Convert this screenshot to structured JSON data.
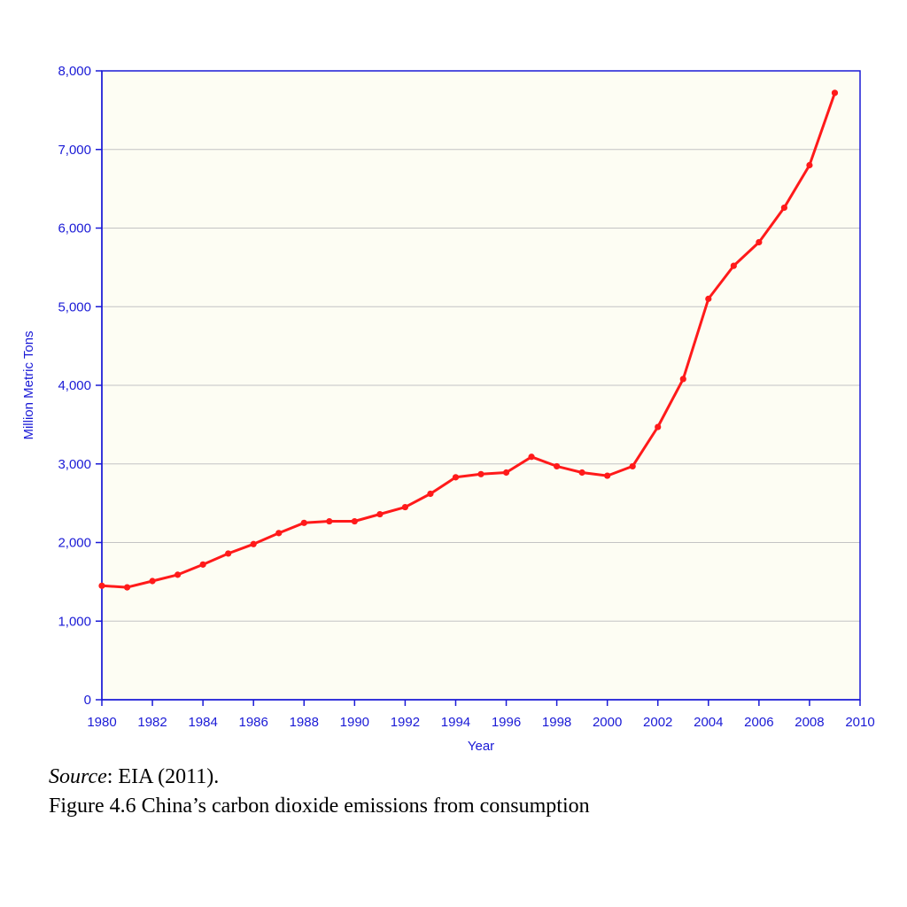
{
  "chart_data": {
    "type": "line",
    "xlabel": "Year",
    "ylabel": "Million Metric Tons",
    "xlim": [
      1980,
      2010
    ],
    "ylim": [
      0,
      8000
    ],
    "x_ticks": [
      "1980",
      "1982",
      "1984",
      "1986",
      "1988",
      "1990",
      "1992",
      "1994",
      "1996",
      "1998",
      "2000",
      "2002",
      "2004",
      "2006",
      "2008",
      "2010"
    ],
    "y_ticks": [
      "0",
      "1,000",
      "2,000",
      "3,000",
      "4,000",
      "5,000",
      "6,000",
      "7,000",
      "8,000"
    ],
    "grid": true,
    "series": [
      {
        "x": [
          1980,
          1981,
          1982,
          1983,
          1984,
          1985,
          1986,
          1987,
          1988,
          1989,
          1990,
          1991,
          1992,
          1993,
          1994,
          1995,
          1996,
          1997,
          1998,
          1999,
          2000,
          2001,
          2002,
          2003,
          2004,
          2005,
          2006,
          2007,
          2008,
          2009
        ],
        "values": [
          1450,
          1430,
          1510,
          1590,
          1720,
          1860,
          1980,
          2120,
          2250,
          2270,
          2270,
          2360,
          2450,
          2620,
          2830,
          2870,
          2890,
          3090,
          2970,
          2890,
          2850,
          2970,
          3470,
          4080,
          5100,
          5520,
          5820,
          6260,
          6800,
          7720
        ]
      }
    ],
    "colors": {
      "axis": "#1a1ad6",
      "line": "#ff1a1a",
      "plot_background": "#fdfdf3",
      "grid": "#c4c4c4"
    }
  },
  "caption": {
    "source_label": "Source",
    "source_text": ": EIA (2011).",
    "figure_title": "Figure 4.6 China’s carbon dioxide emissions from consumption"
  }
}
